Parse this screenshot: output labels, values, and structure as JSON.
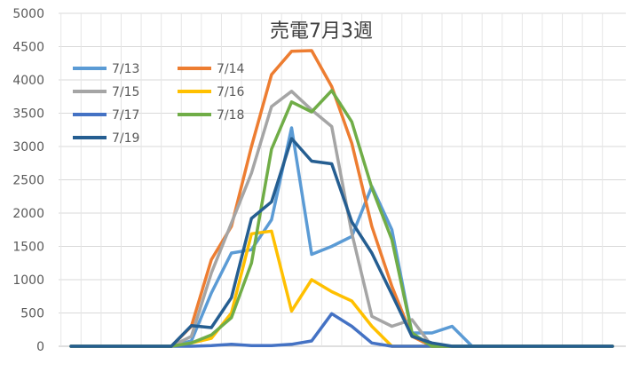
{
  "chart_data": {
    "type": "line",
    "title": "売電7月3週",
    "xlabel": "",
    "ylabel": "",
    "ylim": [
      0,
      5000
    ],
    "yticks": [
      0,
      500,
      1000,
      1500,
      2000,
      2500,
      3000,
      3500,
      4000,
      4500,
      5000
    ],
    "grid": true,
    "legend_position": "top-left",
    "x": [
      1,
      2,
      3,
      4,
      5,
      6,
      7,
      8,
      9,
      10,
      11,
      12,
      13,
      14,
      15,
      16,
      17,
      18,
      19,
      20,
      21,
      22,
      23,
      24,
      25,
      26,
      27,
      28
    ],
    "series": [
      {
        "name": "7/13",
        "color": "#5B9BD5",
        "values": [
          0,
          0,
          0,
          0,
          0,
          0,
          80,
          800,
          1400,
          1450,
          1900,
          3280,
          1380,
          1500,
          1650,
          2400,
          1750,
          200,
          200,
          300,
          0,
          0,
          0,
          0,
          0,
          0,
          0,
          0
        ]
      },
      {
        "name": "7/14",
        "color": "#ED7D31",
        "values": [
          0,
          0,
          0,
          0,
          0,
          0,
          300,
          1300,
          1800,
          3000,
          4080,
          4430,
          4440,
          3900,
          3050,
          1800,
          900,
          150,
          0,
          0,
          0,
          0,
          0,
          0,
          0,
          0,
          0,
          0
        ]
      },
      {
        "name": "7/15",
        "color": "#A5A5A5",
        "values": [
          0,
          0,
          0,
          0,
          0,
          0,
          150,
          1100,
          1850,
          2600,
          3600,
          3830,
          3550,
          3300,
          1700,
          450,
          300,
          400,
          0,
          0,
          0,
          0,
          0,
          0,
          0,
          0,
          0,
          0
        ]
      },
      {
        "name": "7/16",
        "color": "#FFC000",
        "values": [
          0,
          0,
          0,
          0,
          0,
          0,
          50,
          120,
          500,
          1690,
          1730,
          530,
          1000,
          820,
          680,
          300,
          0,
          0,
          0,
          0,
          0,
          0,
          0,
          0,
          0,
          0,
          0,
          0
        ]
      },
      {
        "name": "7/17",
        "color": "#4472C4",
        "values": [
          0,
          0,
          0,
          0,
          0,
          0,
          0,
          10,
          30,
          10,
          10,
          30,
          80,
          490,
          300,
          50,
          0,
          0,
          0,
          0,
          0,
          0,
          0,
          0,
          0,
          0,
          0,
          0
        ]
      },
      {
        "name": "7/18",
        "color": "#70AD47",
        "values": [
          0,
          0,
          0,
          0,
          0,
          0,
          50,
          170,
          430,
          1250,
          2960,
          3670,
          3520,
          3840,
          3370,
          2380,
          1600,
          200,
          0,
          0,
          0,
          0,
          0,
          0,
          0,
          0,
          0,
          0
        ]
      },
      {
        "name": "7/19",
        "color": "#255E91",
        "values": [
          0,
          0,
          0,
          0,
          0,
          0,
          310,
          280,
          730,
          1920,
          2170,
          3120,
          2780,
          2740,
          1870,
          1400,
          780,
          150,
          50,
          0,
          0,
          0,
          0,
          0,
          0,
          0,
          0,
          0
        ]
      }
    ]
  }
}
